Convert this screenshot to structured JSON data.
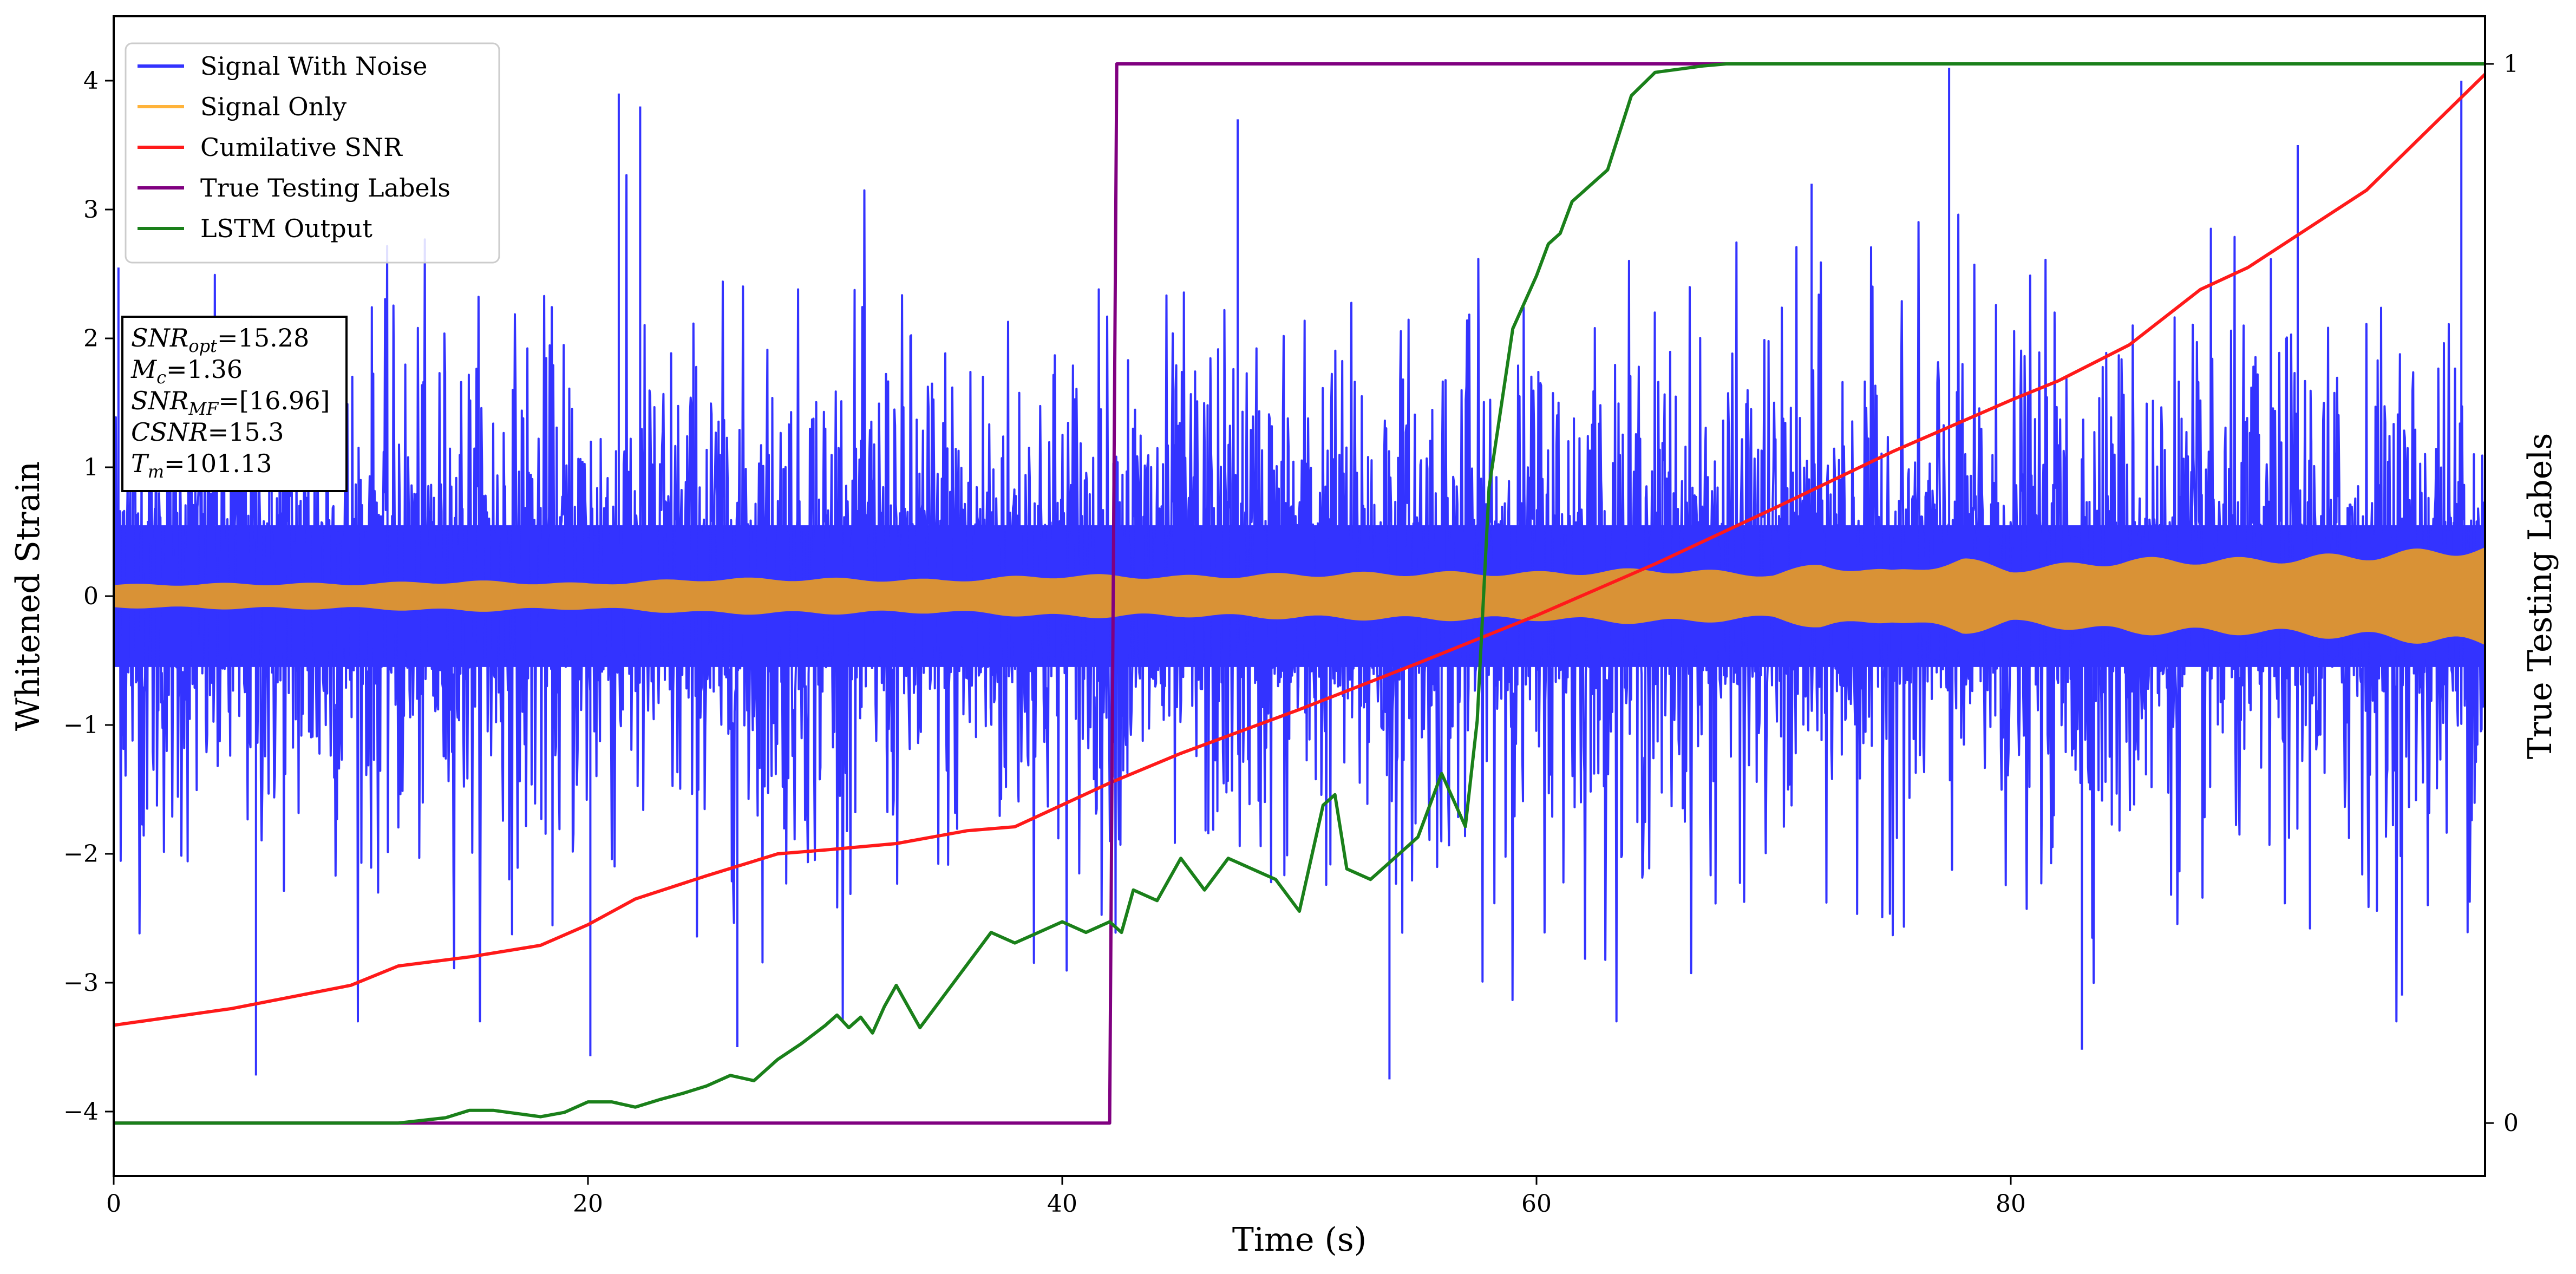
{
  "colors": {
    "noise": "#3333ff",
    "signal": "#d99236",
    "signal_legend": "#ffb33a",
    "cumulative": "#ff1a1a",
    "labels": "#800080",
    "lstm": "#1a801a"
  },
  "chart_data": {
    "type": "line",
    "xlabel": "Time (s)",
    "ylabel": "Whitened Strain",
    "ylabel_right": "True Testing Labels",
    "xlim": [
      0,
      100
    ],
    "ylim": [
      -4.5,
      4.5
    ],
    "ylim_right": [
      -0.05,
      1.045
    ],
    "xticks": [
      0,
      20,
      40,
      60,
      80
    ],
    "yticks": [
      -4,
      -3,
      -2,
      -1,
      0,
      1,
      2,
      3,
      4
    ],
    "yticks_right": [
      0,
      1
    ],
    "grid": false,
    "legend_position": "upper-left",
    "legend": [
      {
        "name": "Signal With Noise",
        "color_key": "noise"
      },
      {
        "name": "Signal Only",
        "color_key": "signal_legend"
      },
      {
        "name": "Cumilative SNR",
        "color_key": "cumulative"
      },
      {
        "name": "True Testing Labels",
        "color_key": "labels"
      },
      {
        "name": "LSTM Output",
        "color_key": "lstm"
      }
    ],
    "annotation": [
      {
        "main": "SNR",
        "sub": "opt",
        "value": "=15.28"
      },
      {
        "main": "M",
        "sub": "c",
        "value": "=1.36"
      },
      {
        "main": "SNR",
        "sub": "MF",
        "value": "=[16.96]"
      },
      {
        "main": "CSNR",
        "sub": "",
        "value": "=15.3"
      },
      {
        "main": "T",
        "sub": "m",
        "value": "=101.13"
      }
    ],
    "series": [
      {
        "name": "Signal With Noise",
        "axis": "left",
        "render": "noise_band",
        "x_range": [
          0,
          100
        ],
        "band_upper_approx": 1.0,
        "band_lower_approx": -1.0,
        "notable_peaks": [
          [
            0.2,
            2.55
          ],
          [
            21.3,
            3.9
          ],
          [
            22.2,
            3.8
          ],
          [
            47.4,
            3.7
          ],
          [
            71.6,
            3.2
          ],
          [
            77.4,
            4.1
          ],
          [
            92.1,
            3.5
          ],
          [
            99.0,
            4.0
          ]
        ],
        "notable_troughs": [
          [
            6.0,
            -3.72
          ],
          [
            20.1,
            -3.57
          ],
          [
            26.3,
            -3.5
          ],
          [
            53.8,
            -3.75
          ],
          [
            83.0,
            -3.52
          ],
          [
            96.5,
            -3.1
          ]
        ]
      },
      {
        "name": "Signal Only",
        "axis": "left",
        "render": "envelope",
        "x": [
          0,
          5,
          10,
          15,
          20,
          25,
          30,
          35,
          40,
          45,
          50,
          55,
          60,
          62,
          65,
          70,
          72,
          75,
          78,
          80,
          85,
          90,
          95,
          100
        ],
        "amplitude": [
          0.09,
          0.1,
          0.1,
          0.12,
          0.1,
          0.14,
          0.14,
          0.13,
          0.17,
          0.16,
          0.18,
          0.19,
          0.19,
          0.2,
          0.22,
          0.18,
          0.26,
          0.2,
          0.3,
          0.22,
          0.3,
          0.3,
          0.34,
          0.4
        ]
      },
      {
        "name": "Cumilative SNR",
        "axis": "left",
        "x": [
          0,
          5,
          10,
          12,
          15,
          18,
          20,
          22,
          25,
          28,
          30,
          33,
          36,
          38,
          40,
          42,
          45,
          50,
          55,
          60,
          65,
          70,
          75,
          80,
          82,
          85,
          88,
          90,
          95,
          100
        ],
        "values": [
          -3.33,
          -3.2,
          -3.02,
          -2.87,
          -2.8,
          -2.71,
          -2.55,
          -2.35,
          -2.17,
          -2.0,
          -1.97,
          -1.92,
          -1.82,
          -1.79,
          -1.62,
          -1.45,
          -1.22,
          -0.88,
          -0.52,
          -0.15,
          0.25,
          0.68,
          1.12,
          1.52,
          1.67,
          1.95,
          2.38,
          2.55,
          3.15,
          4.05
        ]
      },
      {
        "name": "True Testing Labels",
        "axis": "right",
        "x": [
          0,
          42.0,
          42.3,
          100
        ],
        "values": [
          0,
          0,
          1,
          1
        ]
      },
      {
        "name": "LSTM Output",
        "axis": "right",
        "x": [
          0,
          12,
          14,
          15,
          16,
          18,
          19,
          20,
          21,
          22,
          23,
          24,
          25,
          26,
          27,
          28,
          29,
          30,
          30.5,
          31,
          31.5,
          32,
          32.5,
          33,
          34,
          35,
          36,
          37,
          38,
          39,
          40,
          41,
          42,
          42.5,
          43,
          44,
          45,
          46,
          47,
          48,
          49,
          50,
          51,
          51.5,
          52,
          53,
          54,
          55,
          56,
          57,
          57.5,
          58,
          59,
          60,
          60.5,
          61,
          61.5,
          62,
          63,
          64,
          65,
          66,
          67,
          68,
          70,
          100
        ],
        "values": [
          0,
          0,
          0.005,
          0.012,
          0.012,
          0.006,
          0.01,
          0.02,
          0.02,
          0.015,
          0.022,
          0.028,
          0.035,
          0.045,
          0.04,
          0.06,
          0.075,
          0.092,
          0.102,
          0.09,
          0.1,
          0.085,
          0.11,
          0.13,
          0.09,
          0.12,
          0.15,
          0.18,
          0.17,
          0.18,
          0.19,
          0.18,
          0.19,
          0.18,
          0.22,
          0.21,
          0.25,
          0.22,
          0.25,
          0.24,
          0.23,
          0.2,
          0.3,
          0.31,
          0.24,
          0.23,
          0.25,
          0.27,
          0.33,
          0.28,
          0.38,
          0.6,
          0.75,
          0.8,
          0.83,
          0.84,
          0.87,
          0.88,
          0.9,
          0.97,
          0.992,
          0.995,
          0.998,
          1.0,
          1.0,
          1.0
        ]
      }
    ]
  }
}
